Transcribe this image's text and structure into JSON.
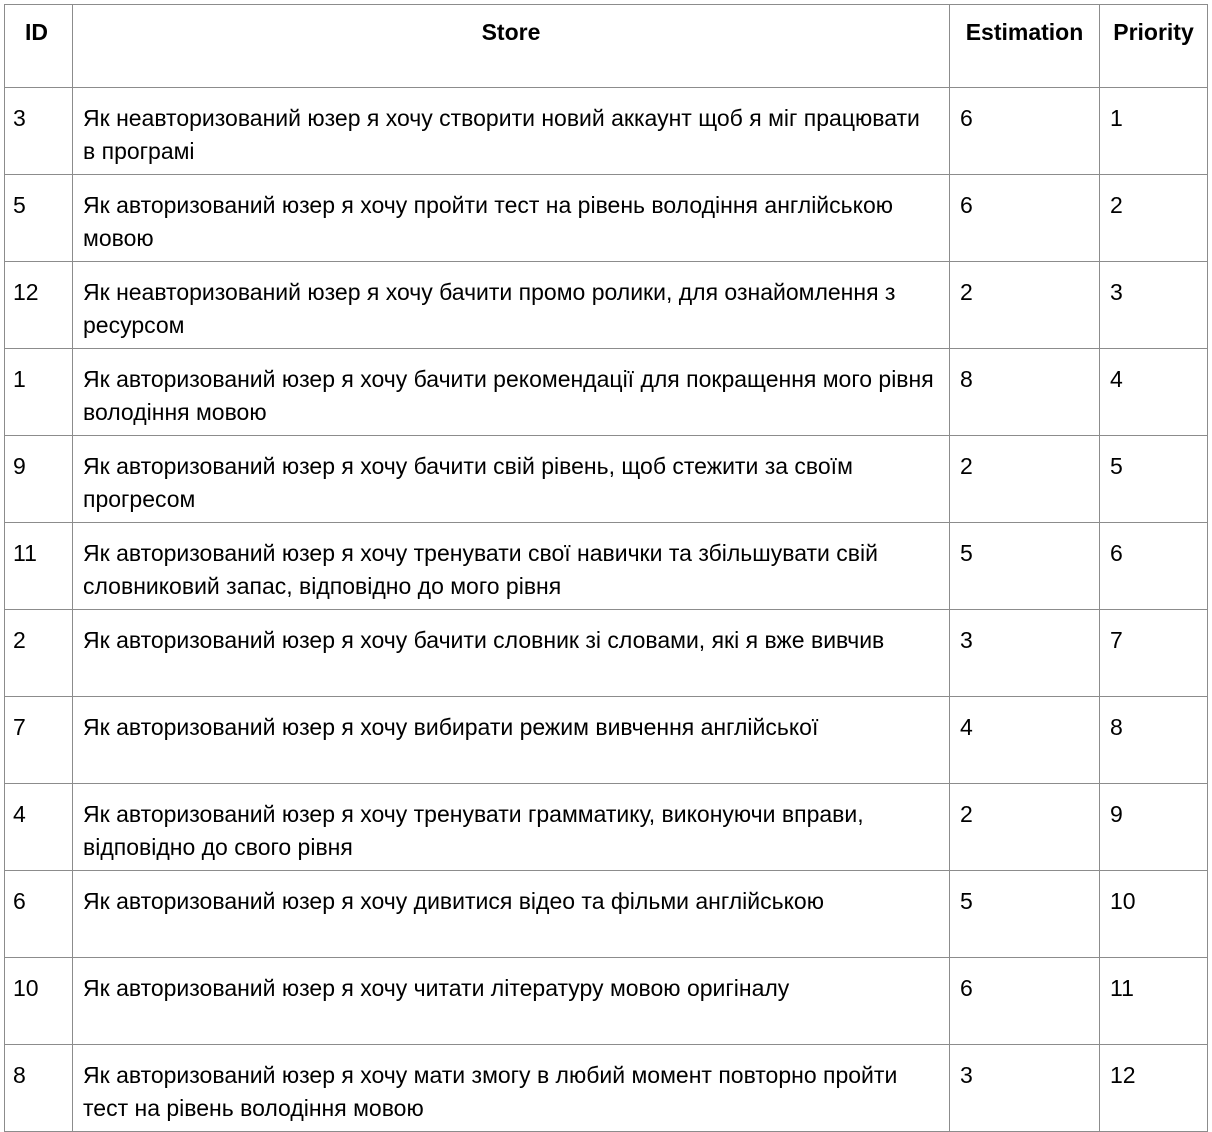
{
  "table": {
    "headers": {
      "id": "ID",
      "store": "Store",
      "estimation": "Estimation",
      "priority": "Priority"
    },
    "rows": [
      {
        "id": "3",
        "story": "Як неавторизований юзер я хочу створити новий аккаунт щоб я міг працювати в програмі",
        "estimation": "6",
        "priority": "1"
      },
      {
        "id": "5",
        "story": "Як авторизований юзер я хочу пройти тест на рівень володіння англійською мовою",
        "estimation": "6",
        "priority": "2"
      },
      {
        "id": "12",
        "story": "Як неавторизований юзер я хочу бачити промо ролики, для ознайомлення з ресурсом",
        "estimation": "2",
        "priority": "3"
      },
      {
        "id": "1",
        "story": "Як авторизований юзер я хочу бачити рекомендації для покращення мого рівня володіння мовою",
        "estimation": "8",
        "priority": "4"
      },
      {
        "id": "9",
        "story": "Як авторизований юзер я хочу бачити свій рівень, щоб стежити за своїм прогресом",
        "estimation": "2",
        "priority": "5"
      },
      {
        "id": "11",
        "story": "Як авторизований юзер я хочу тренувати свої навички та збільшувати свій словниковий запас, відповідно до мого рівня",
        "estimation": "5",
        "priority": "6"
      },
      {
        "id": "2",
        "story": "Як авторизований юзер я хочу бачити словник зі словами, які я вже вивчив",
        "estimation": "3",
        "priority": "7"
      },
      {
        "id": "7",
        "story": "Як авторизований юзер я хочу вибирати режим вивчення англійської",
        "estimation": "4",
        "priority": "8"
      },
      {
        "id": "4",
        "story": "Як авторизований юзер я хочу тренувати грамматику, виконуючи вправи, відповідно до свого рівня",
        "estimation": "2",
        "priority": "9"
      },
      {
        "id": "6",
        "story": "Як авторизований юзер я хочу дивитися відео та фільми англійською",
        "estimation": "5",
        "priority": "10"
      },
      {
        "id": "10",
        "story": "Як авторизований юзер я хочу читати літературу мовою оригіналу",
        "estimation": "6",
        "priority": "11"
      },
      {
        "id": "8",
        "story": "Як авторизований юзер я хочу мати змогу в любий момент повторно пройти тест на рівень володіння мовою",
        "estimation": "3",
        "priority": "12"
      }
    ]
  }
}
